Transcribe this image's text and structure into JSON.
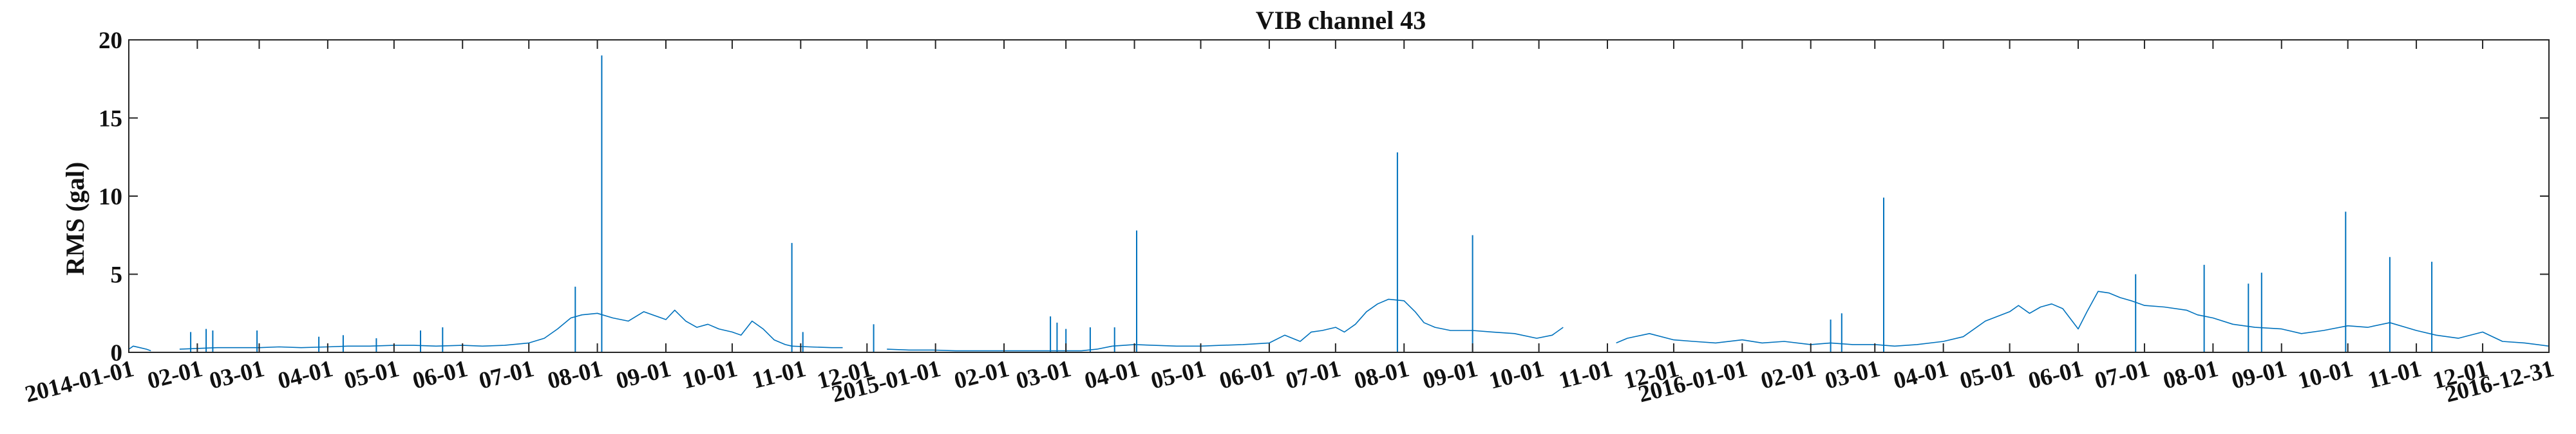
{
  "chart_data": {
    "type": "line",
    "title": "VIB channel 43",
    "xlabel": "",
    "ylabel": "RMS (gal)",
    "xlim": [
      "2014-01-01",
      "2016-12-31"
    ],
    "ylim": [
      0,
      20
    ],
    "grid": false,
    "legend": "none",
    "colors": {
      "series": "#0072BD",
      "axes": "#262626"
    },
    "y_ticks": [
      0,
      5,
      10,
      15,
      20
    ],
    "x_ticks": [
      {
        "date": "2014-01-01",
        "label": "2014-01-01"
      },
      {
        "date": "2014-02-01",
        "label": "02-01"
      },
      {
        "date": "2014-03-01",
        "label": "03-01"
      },
      {
        "date": "2014-04-01",
        "label": "04-01"
      },
      {
        "date": "2014-05-01",
        "label": "05-01"
      },
      {
        "date": "2014-06-01",
        "label": "06-01"
      },
      {
        "date": "2014-07-01",
        "label": "07-01"
      },
      {
        "date": "2014-08-01",
        "label": "08-01"
      },
      {
        "date": "2014-09-01",
        "label": "09-01"
      },
      {
        "date": "2014-10-01",
        "label": "10-01"
      },
      {
        "date": "2014-11-01",
        "label": "11-01"
      },
      {
        "date": "2014-12-01",
        "label": "12-01"
      },
      {
        "date": "2015-01-01",
        "label": "2015-01-01"
      },
      {
        "date": "2015-02-01",
        "label": "02-01"
      },
      {
        "date": "2015-03-01",
        "label": "03-01"
      },
      {
        "date": "2015-04-01",
        "label": "04-01"
      },
      {
        "date": "2015-05-01",
        "label": "05-01"
      },
      {
        "date": "2015-06-01",
        "label": "06-01"
      },
      {
        "date": "2015-07-01",
        "label": "07-01"
      },
      {
        "date": "2015-08-01",
        "label": "08-01"
      },
      {
        "date": "2015-09-01",
        "label": "09-01"
      },
      {
        "date": "2015-10-01",
        "label": "10-01"
      },
      {
        "date": "2015-11-01",
        "label": "11-01"
      },
      {
        "date": "2015-12-01",
        "label": "12-01"
      },
      {
        "date": "2016-01-01",
        "label": "2016-01-01"
      },
      {
        "date": "2016-02-01",
        "label": "02-01"
      },
      {
        "date": "2016-03-01",
        "label": "03-01"
      },
      {
        "date": "2016-04-01",
        "label": "04-01"
      },
      {
        "date": "2016-05-01",
        "label": "05-01"
      },
      {
        "date": "2016-06-01",
        "label": "06-01"
      },
      {
        "date": "2016-07-01",
        "label": "07-01"
      },
      {
        "date": "2016-08-01",
        "label": "08-01"
      },
      {
        "date": "2016-09-01",
        "label": "09-01"
      },
      {
        "date": "2016-10-01",
        "label": "10-01"
      },
      {
        "date": "2016-11-01",
        "label": "11-01"
      },
      {
        "date": "2016-12-01",
        "label": "12-01"
      },
      {
        "date": "2016-12-31",
        "label": "2016-12-31"
      }
    ],
    "baseline_segments": [
      {
        "x": [
          "2014-01-01",
          "2014-01-03",
          "2014-01-06",
          "2014-01-09",
          "2014-01-11"
        ],
        "y": [
          0.2,
          0.4,
          0.3,
          0.2,
          0.1
        ]
      },
      {
        "x": [
          "2014-01-24",
          "2014-02-01",
          "2014-02-10",
          "2014-02-20",
          "2014-03-01",
          "2014-03-10",
          "2014-03-20",
          "2014-04-01",
          "2014-04-10",
          "2014-04-20",
          "2014-05-01",
          "2014-05-10",
          "2014-05-20",
          "2014-06-01",
          "2014-06-10",
          "2014-06-20",
          "2014-07-01",
          "2014-07-08",
          "2014-07-14",
          "2014-07-20"
        ],
        "y": [
          0.2,
          0.25,
          0.3,
          0.3,
          0.3,
          0.35,
          0.3,
          0.35,
          0.4,
          0.4,
          0.45,
          0.45,
          0.4,
          0.45,
          0.4,
          0.45,
          0.6,
          0.9,
          1.5,
          2.2
        ]
      },
      {
        "x": [
          "2014-07-20",
          "2014-07-25",
          "2014-08-01",
          "2014-08-08",
          "2014-08-15",
          "2014-08-22",
          "2014-09-01",
          "2014-09-05",
          "2014-09-10",
          "2014-09-15",
          "2014-09-20",
          "2014-09-25",
          "2014-10-01",
          "2014-10-05",
          "2014-10-10",
          "2014-10-15",
          "2014-10-20",
          "2014-10-25",
          "2014-10-28"
        ],
        "y": [
          2.2,
          2.4,
          2.5,
          2.2,
          2.0,
          2.6,
          2.1,
          2.7,
          2.0,
          1.6,
          1.8,
          1.5,
          1.3,
          1.1,
          2.0,
          1.5,
          0.8,
          0.5,
          0.4
        ]
      },
      {
        "x": [
          "2014-10-28",
          "2014-11-05",
          "2014-11-15",
          "2014-11-20"
        ],
        "y": [
          0.4,
          0.35,
          0.3,
          0.3
        ]
      },
      {
        "x": [
          "2014-12-10",
          "2014-12-20",
          "2014-12-31",
          "2015-01-10",
          "2015-01-20",
          "2015-02-01",
          "2015-02-10",
          "2015-02-20",
          "2015-03-01",
          "2015-03-08",
          "2015-03-15",
          "2015-03-22"
        ],
        "y": [
          0.2,
          0.15,
          0.15,
          0.1,
          0.1,
          0.1,
          0.1,
          0.1,
          0.1,
          0.1,
          0.2,
          0.4
        ]
      },
      {
        "x": [
          "2015-03-22",
          "2015-04-01",
          "2015-04-10",
          "2015-04-20",
          "2015-05-01",
          "2015-05-10",
          "2015-05-20",
          "2015-06-01",
          "2015-06-08",
          "2015-06-15",
          "2015-06-20",
          "2015-06-25",
          "2015-07-01",
          "2015-07-05",
          "2015-07-10",
          "2015-07-15",
          "2015-07-20",
          "2015-07-25",
          "2015-08-01",
          "2015-08-06",
          "2015-08-10",
          "2015-08-15",
          "2015-08-22",
          "2015-09-01",
          "2015-09-10",
          "2015-09-20",
          "2015-09-30",
          "2015-10-07",
          "2015-10-12"
        ],
        "y": [
          0.4,
          0.5,
          0.45,
          0.4,
          0.4,
          0.45,
          0.5,
          0.6,
          1.1,
          0.7,
          1.3,
          1.4,
          1.6,
          1.3,
          1.8,
          2.6,
          3.1,
          3.4,
          3.3,
          2.6,
          1.9,
          1.6,
          1.4,
          1.4,
          1.3,
          1.2,
          0.9,
          1.1,
          1.6
        ]
      },
      {
        "x": [
          "2015-11-05",
          "2015-11-10",
          "2015-11-20",
          "2015-12-01",
          "2015-12-10",
          "2015-12-20",
          "2016-01-01",
          "2016-01-10",
          "2016-01-20",
          "2016-02-01",
          "2016-02-10",
          "2016-02-20",
          "2016-03-01",
          "2016-03-10",
          "2016-03-20",
          "2016-04-01",
          "2016-04-10",
          "2016-04-20",
          "2016-05-01",
          "2016-05-05",
          "2016-05-10",
          "2016-05-15",
          "2016-05-20",
          "2016-05-25",
          "2016-06-01",
          "2016-06-05",
          "2016-06-10",
          "2016-06-15",
          "2016-06-20",
          "2016-06-25",
          "2016-07-01",
          "2016-07-10",
          "2016-07-20",
          "2016-07-25",
          "2016-08-01",
          "2016-08-10",
          "2016-08-20",
          "2016-09-01",
          "2016-09-10",
          "2016-09-20",
          "2016-10-01",
          "2016-10-10",
          "2016-10-20",
          "2016-11-01",
          "2016-11-10",
          "2016-11-20",
          "2016-12-01",
          "2016-12-10",
          "2016-12-20",
          "2016-12-31"
        ],
        "y": [
          0.6,
          0.9,
          1.2,
          0.8,
          0.7,
          0.6,
          0.8,
          0.6,
          0.7,
          0.5,
          0.6,
          0.5,
          0.5,
          0.4,
          0.5,
          0.7,
          1.0,
          2.0,
          2.6,
          3.0,
          2.5,
          2.9,
          3.1,
          2.8,
          1.5,
          2.6,
          3.9,
          3.8,
          3.5,
          3.3,
          3.0,
          2.9,
          2.7,
          2.4,
          2.2,
          1.8,
          1.6,
          1.5,
          1.2,
          1.4,
          1.7,
          1.6,
          1.9,
          1.4,
          1.1,
          0.9,
          1.3,
          0.7,
          0.6,
          0.4
        ]
      }
    ],
    "spikes": [
      {
        "x": "2014-01-29",
        "y": 1.3
      },
      {
        "x": "2014-02-05",
        "y": 1.5
      },
      {
        "x": "2014-02-08",
        "y": 1.4
      },
      {
        "x": "2014-02-28",
        "y": 1.4
      },
      {
        "x": "2014-03-28",
        "y": 1.0
      },
      {
        "x": "2014-04-08",
        "y": 1.1
      },
      {
        "x": "2014-04-23",
        "y": 0.9
      },
      {
        "x": "2014-05-13",
        "y": 1.4
      },
      {
        "x": "2014-05-23",
        "y": 1.6
      },
      {
        "x": "2014-07-22",
        "y": 4.2
      },
      {
        "x": "2014-08-03",
        "y": 19.0
      },
      {
        "x": "2014-10-28",
        "y": 7.0
      },
      {
        "x": "2014-11-02",
        "y": 1.3
      },
      {
        "x": "2014-12-04",
        "y": 1.8
      },
      {
        "x": "2015-02-22",
        "y": 2.3
      },
      {
        "x": "2015-02-25",
        "y": 1.9
      },
      {
        "x": "2015-03-01",
        "y": 1.5
      },
      {
        "x": "2015-03-12",
        "y": 1.6
      },
      {
        "x": "2015-03-23",
        "y": 1.6
      },
      {
        "x": "2015-04-02",
        "y": 7.8
      },
      {
        "x": "2015-07-29",
        "y": 12.8
      },
      {
        "x": "2015-09-01",
        "y": 7.5
      },
      {
        "x": "2016-02-10",
        "y": 2.1
      },
      {
        "x": "2016-02-15",
        "y": 2.5
      },
      {
        "x": "2016-03-05",
        "y": 9.9
      },
      {
        "x": "2016-06-27",
        "y": 5.0
      },
      {
        "x": "2016-07-28",
        "y": 5.6
      },
      {
        "x": "2016-08-17",
        "y": 4.4
      },
      {
        "x": "2016-08-23",
        "y": 5.1
      },
      {
        "x": "2016-09-30",
        "y": 9.0
      },
      {
        "x": "2016-10-20",
        "y": 6.1
      },
      {
        "x": "2016-11-08",
        "y": 5.8
      }
    ]
  }
}
